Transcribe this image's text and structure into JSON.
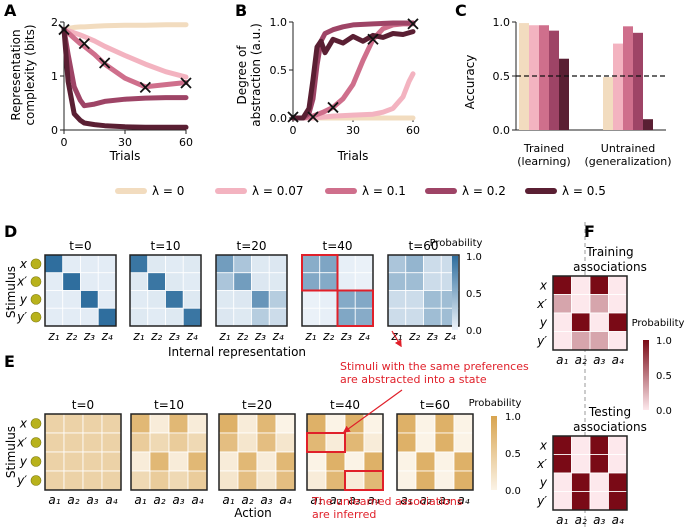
{
  "panel_labels": {
    "A": "A",
    "B": "B",
    "C": "C",
    "D": "D",
    "E": "E",
    "F": "F"
  },
  "legend": {
    "entries": [
      "λ = 0",
      "λ = 0.07",
      "λ = 0.1",
      "λ = 0.2",
      "λ = 0.5"
    ]
  },
  "colors": {
    "lambda_0": "#f2dcbf",
    "lambda_007": "#f3b3c0",
    "lambda_01": "#cf6f8c",
    "lambda_02": "#9e4466",
    "lambda_05": "#5a1f33",
    "heat_blue": "#2f6e9e",
    "heat_tan": "#d8a44f",
    "heat_red": "#7a0a16",
    "highlight": "#e0202a"
  },
  "chart_data": [
    {
      "id": "A",
      "type": "line",
      "title": "",
      "xlabel": "Trials",
      "ylabel": "Representation complexity (bits)",
      "ylabel_lines": [
        "Representation",
        "complexity (bits)"
      ],
      "xlim": [
        0,
        60
      ],
      "ylim": [
        0,
        2
      ],
      "xticks": [
        0,
        30,
        60
      ],
      "yticks": [
        0,
        1,
        2
      ],
      "x": [
        0,
        2,
        5,
        8,
        10,
        15,
        20,
        30,
        40,
        50,
        60
      ],
      "series": [
        {
          "name": "λ = 0",
          "values": [
            1.86,
            1.88,
            1.9,
            1.91,
            1.91,
            1.92,
            1.93,
            1.94,
            1.94,
            1.95,
            1.95
          ]
        },
        {
          "name": "λ = 0.07",
          "values": [
            1.86,
            1.84,
            1.8,
            1.76,
            1.73,
            1.65,
            1.55,
            1.38,
            1.22,
            1.08,
            0.98
          ]
        },
        {
          "name": "λ = 0.1",
          "values": [
            1.86,
            1.8,
            1.7,
            1.6,
            1.55,
            1.4,
            1.22,
            0.96,
            0.8,
            0.84,
            0.88
          ]
        },
        {
          "name": "λ = 0.2",
          "values": [
            1.86,
            1.4,
            0.8,
            0.55,
            0.45,
            0.48,
            0.53,
            0.57,
            0.59,
            0.6,
            0.6
          ]
        },
        {
          "name": "λ = 0.5",
          "values": [
            1.86,
            0.9,
            0.3,
            0.18,
            0.13,
            0.1,
            0.08,
            0.06,
            0.05,
            0.05,
            0.05
          ]
        }
      ],
      "markers": [
        {
          "x": 0,
          "y": 1.86
        },
        {
          "x": 10,
          "y": 1.6
        },
        {
          "x": 20,
          "y": 1.24
        },
        {
          "x": 40,
          "y": 0.79
        },
        {
          "x": 60,
          "y": 0.87
        }
      ]
    },
    {
      "id": "B",
      "type": "line",
      "title": "",
      "xlabel": "Trials",
      "ylabel": "Degree of abstraction (a.u.)",
      "ylabel_lines": [
        "Degree of",
        "abstraction (a.u.)"
      ],
      "xlim": [
        0,
        60
      ],
      "ylim": [
        0,
        1
      ],
      "xticks": [
        0,
        30,
        60
      ],
      "yticks": [
        0.0,
        0.5,
        1.0
      ],
      "series": [
        {
          "name": "λ = 0",
          "x": [
            0,
            10,
            20,
            30,
            40,
            50,
            60
          ],
          "values": [
            0,
            0,
            0,
            0,
            0,
            0,
            0
          ]
        },
        {
          "name": "λ = 0.07",
          "x": [
            0,
            10,
            20,
            30,
            40,
            45,
            50,
            55,
            58,
            60
          ],
          "values": [
            0,
            0,
            0.02,
            0.03,
            0.04,
            0.06,
            0.1,
            0.22,
            0.38,
            0.46
          ]
        },
        {
          "name": "λ = 0.1",
          "x": [
            0,
            5,
            10,
            15,
            20,
            25,
            30,
            35,
            40,
            45,
            50,
            55,
            60
          ],
          "values": [
            0,
            0,
            0.02,
            0.06,
            0.11,
            0.2,
            0.35,
            0.6,
            0.82,
            0.93,
            0.97,
            0.98,
            0.98
          ]
        },
        {
          "name": "λ = 0.2",
          "x": [
            0,
            5,
            8,
            10,
            12,
            14,
            16,
            20,
            25,
            30,
            40,
            50,
            60
          ],
          "values": [
            0,
            0,
            0.05,
            0.2,
            0.55,
            0.8,
            0.88,
            0.92,
            0.95,
            0.97,
            0.98,
            0.99,
            0.99
          ]
        },
        {
          "name": "λ = 0.5",
          "x": [
            0,
            5,
            8,
            10,
            12,
            14,
            16,
            20,
            25,
            30,
            35,
            40,
            45,
            50,
            55,
            60
          ],
          "values": [
            0,
            0,
            0.1,
            0.4,
            0.74,
            0.8,
            0.68,
            0.82,
            0.78,
            0.85,
            0.8,
            0.86,
            0.84,
            0.88,
            0.87,
            0.9
          ]
        }
      ],
      "markers": [
        {
          "x": 0,
          "y": 0.01
        },
        {
          "x": 10,
          "y": 0.01
        },
        {
          "x": 20,
          "y": 0.11
        },
        {
          "x": 40,
          "y": 0.82
        },
        {
          "x": 60,
          "y": 0.98
        }
      ]
    },
    {
      "id": "C",
      "type": "bar",
      "title": "",
      "xlabel": "",
      "ylabel": "Accuracy",
      "ylim": [
        0,
        1
      ],
      "yticks": [
        0.0,
        0.5,
        1.0
      ],
      "reference_line": 0.5,
      "categories": [
        "Trained (learning)",
        "Untrained (generalization)"
      ],
      "category_lines": [
        [
          "Trained",
          "(learning)"
        ],
        [
          "Untrained",
          "(generalization)"
        ]
      ],
      "series": [
        {
          "name": "λ = 0",
          "values": [
            0.99,
            0.49
          ]
        },
        {
          "name": "λ = 0.07",
          "values": [
            0.97,
            0.8
          ]
        },
        {
          "name": "λ = 0.1",
          "values": [
            0.97,
            0.96
          ]
        },
        {
          "name": "λ = 0.2",
          "values": [
            0.92,
            0.9
          ]
        },
        {
          "name": "λ = 0.5",
          "values": [
            0.66,
            0.1
          ]
        }
      ]
    },
    {
      "id": "D",
      "type": "heatmap",
      "ylabel": "Stimulus",
      "xlabel": "Internal representation",
      "row_labels": [
        "x",
        "x′",
        "y",
        "y′"
      ],
      "col_labels": [
        "z₁",
        "z₂",
        "z₃",
        "z₄"
      ],
      "colorbar": {
        "title": "Probability",
        "ticks": [
          "1.0",
          "0.5",
          "0.0"
        ]
      },
      "panels": [
        {
          "title": "t=0",
          "values": [
            [
              0.85,
              0.05,
              0.05,
              0.05
            ],
            [
              0.05,
              0.85,
              0.05,
              0.05
            ],
            [
              0.05,
              0.05,
              0.85,
              0.05
            ],
            [
              0.05,
              0.05,
              0.05,
              0.85
            ]
          ]
        },
        {
          "title": "t=10",
          "values": [
            [
              0.8,
              0.07,
              0.06,
              0.07
            ],
            [
              0.07,
              0.8,
              0.07,
              0.06
            ],
            [
              0.06,
              0.07,
              0.8,
              0.07
            ],
            [
              0.07,
              0.06,
              0.07,
              0.8
            ]
          ]
        },
        {
          "title": "t=20",
          "values": [
            [
              0.55,
              0.3,
              0.07,
              0.08
            ],
            [
              0.3,
              0.55,
              0.08,
              0.07
            ],
            [
              0.07,
              0.08,
              0.6,
              0.25
            ],
            [
              0.08,
              0.07,
              0.25,
              0.15
            ]
          ]
        },
        {
          "title": "t=40",
          "values": [
            [
              0.45,
              0.5,
              0.03,
              0.02
            ],
            [
              0.48,
              0.47,
              0.03,
              0.02
            ],
            [
              0.02,
              0.03,
              0.47,
              0.48
            ],
            [
              0.02,
              0.03,
              0.49,
              0.46
            ]
          ]
        },
        {
          "title": "t=60",
          "values": [
            [
              0.3,
              0.4,
              0.15,
              0.15
            ],
            [
              0.35,
              0.35,
              0.15,
              0.15
            ],
            [
              0.15,
              0.15,
              0.35,
              0.35
            ],
            [
              0.15,
              0.15,
              0.35,
              0.35
            ]
          ]
        }
      ]
    },
    {
      "id": "E",
      "type": "heatmap",
      "ylabel": "Stimulus",
      "xlabel": "Action",
      "row_labels": [
        "x",
        "x′",
        "y",
        "y′"
      ],
      "col_labels": [
        "a₁",
        "a₂",
        "a₃",
        "a₄"
      ],
      "colorbar": {
        "title": "Probability",
        "ticks": [
          "1.0",
          "0.5",
          "0.0"
        ]
      },
      "panels": [
        {
          "title": "t=0",
          "values": [
            [
              0.25,
              0.25,
              0.25,
              0.25
            ],
            [
              0.25,
              0.25,
              0.25,
              0.25
            ],
            [
              0.25,
              0.25,
              0.25,
              0.25
            ],
            [
              0.25,
              0.25,
              0.25,
              0.25
            ]
          ]
        },
        {
          "title": "t=10",
          "values": [
            [
              0.45,
              0.05,
              0.45,
              0.05
            ],
            [
              0.3,
              0.2,
              0.3,
              0.2
            ],
            [
              0.05,
              0.45,
              0.05,
              0.45
            ],
            [
              0.2,
              0.3,
              0.2,
              0.3
            ]
          ]
        },
        {
          "title": "t=20",
          "values": [
            [
              0.5,
              0.05,
              0.45,
              0.0
            ],
            [
              0.4,
              0.1,
              0.4,
              0.1
            ],
            [
              0.05,
              0.45,
              0.05,
              0.45
            ],
            [
              0.1,
              0.4,
              0.1,
              0.4
            ]
          ]
        },
        {
          "title": "t=40",
          "values": [
            [
              0.5,
              0.0,
              0.5,
              0.0
            ],
            [
              0.45,
              0.05,
              0.45,
              0.05
            ],
            [
              0.0,
              0.5,
              0.0,
              0.5
            ],
            [
              0.05,
              0.45,
              0.05,
              0.45
            ]
          ]
        },
        {
          "title": "t=60",
          "values": [
            [
              0.5,
              0.0,
              0.5,
              0.0
            ],
            [
              0.5,
              0.0,
              0.5,
              0.0
            ],
            [
              0.0,
              0.5,
              0.0,
              0.5
            ],
            [
              0.0,
              0.5,
              0.0,
              0.5
            ]
          ]
        }
      ]
    },
    {
      "id": "F",
      "type": "heatmap",
      "row_labels": [
        "x",
        "x′",
        "y",
        "y′"
      ],
      "col_labels": [
        "a₁",
        "a₂",
        "a₃",
        "a₄"
      ],
      "colorbar": {
        "title": "Probability",
        "ticks": [
          "1.0",
          "0.5",
          "0.0"
        ]
      },
      "panels": [
        {
          "title": "Training associations",
          "title_lines": [
            "Training",
            "associations"
          ],
          "values": [
            [
              1,
              0,
              1,
              0
            ],
            [
              0.3,
              0,
              0.3,
              0
            ],
            [
              0,
              1,
              0,
              1
            ],
            [
              0,
              0.3,
              0.3,
              0
            ]
          ]
        },
        {
          "title": "Testing associations",
          "title_lines": [
            "Testing",
            "associations"
          ],
          "values": [
            [
              1,
              0,
              1,
              0
            ],
            [
              1,
              0,
              1,
              0
            ],
            [
              0,
              1,
              0,
              1
            ],
            [
              0,
              1,
              0,
              1
            ]
          ]
        }
      ]
    }
  ],
  "annotations": {
    "stimuli_abstracted": "Stimuli with the same preferences are abstracted into a state",
    "stimuli_abstracted_lines": [
      "Stimuli with the same preferences",
      "are abstracted into a state"
    ],
    "unlearned_inferred": "The unlearned associations are inferred",
    "unlearned_inferred_lines": [
      "The unlearned associations",
      "are inferred"
    ]
  }
}
